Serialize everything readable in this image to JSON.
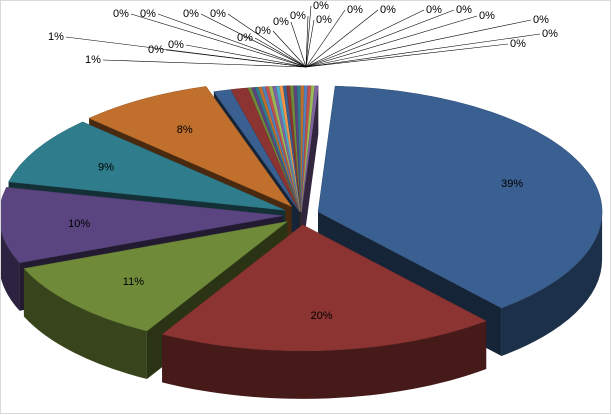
{
  "chart_data": {
    "type": "pie",
    "style": "3d-exploded",
    "title": "",
    "legend": "none",
    "slices": [
      {
        "label": "39%",
        "value": 39,
        "color": "#3a5f91"
      },
      {
        "label": "20%",
        "value": 20,
        "color": "#8c3432"
      },
      {
        "label": "11%",
        "value": 11,
        "color": "#6f8a38"
      },
      {
        "label": "10%",
        "value": 10,
        "color": "#5a4580"
      },
      {
        "label": "9%",
        "value": 9,
        "color": "#2f7d8c"
      },
      {
        "label": "8%",
        "value": 8,
        "color": "#c06f2c"
      },
      {
        "label": "1%",
        "value": 1,
        "color": "#3a5f91"
      },
      {
        "label": "1%",
        "value": 1,
        "color": "#8c3432"
      },
      {
        "label": "0%",
        "value": 0.2,
        "color": "#6f8a38"
      },
      {
        "label": "0%",
        "value": 0.2,
        "color": "#5a4580"
      },
      {
        "label": "0%",
        "value": 0.2,
        "color": "#2f7d8c"
      },
      {
        "label": "0%",
        "value": 0.2,
        "color": "#c06f2c"
      },
      {
        "label": "0%",
        "value": 0.2,
        "color": "#4f81bd"
      },
      {
        "label": "0%",
        "value": 0.2,
        "color": "#c0504d"
      },
      {
        "label": "0%",
        "value": 0.2,
        "color": "#9bbb59"
      },
      {
        "label": "0%",
        "value": 0.2,
        "color": "#8064a2"
      },
      {
        "label": "0%",
        "value": 0.2,
        "color": "#4bacc6"
      },
      {
        "label": "0%",
        "value": 0.2,
        "color": "#f79646"
      },
      {
        "label": "0%",
        "value": 0.2,
        "color": "#3a5f91"
      },
      {
        "label": "0%",
        "value": 0.2,
        "color": "#8c3432"
      },
      {
        "label": "0%",
        "value": 0.2,
        "color": "#6f8a38"
      },
      {
        "label": "0%",
        "value": 0.2,
        "color": "#5a4580"
      },
      {
        "label": "0%",
        "value": 0.2,
        "color": "#2f7d8c"
      },
      {
        "label": "0%",
        "value": 0.2,
        "color": "#c06f2c"
      },
      {
        "label": "0%",
        "value": 0.2,
        "color": "#4f81bd"
      },
      {
        "label": "0%",
        "value": 0.2,
        "color": "#c0504d"
      },
      {
        "label": "0%",
        "value": 0.2,
        "color": "#9bbb59"
      },
      {
        "label": "0%",
        "value": 0.2,
        "color": "#8064a2"
      }
    ]
  }
}
